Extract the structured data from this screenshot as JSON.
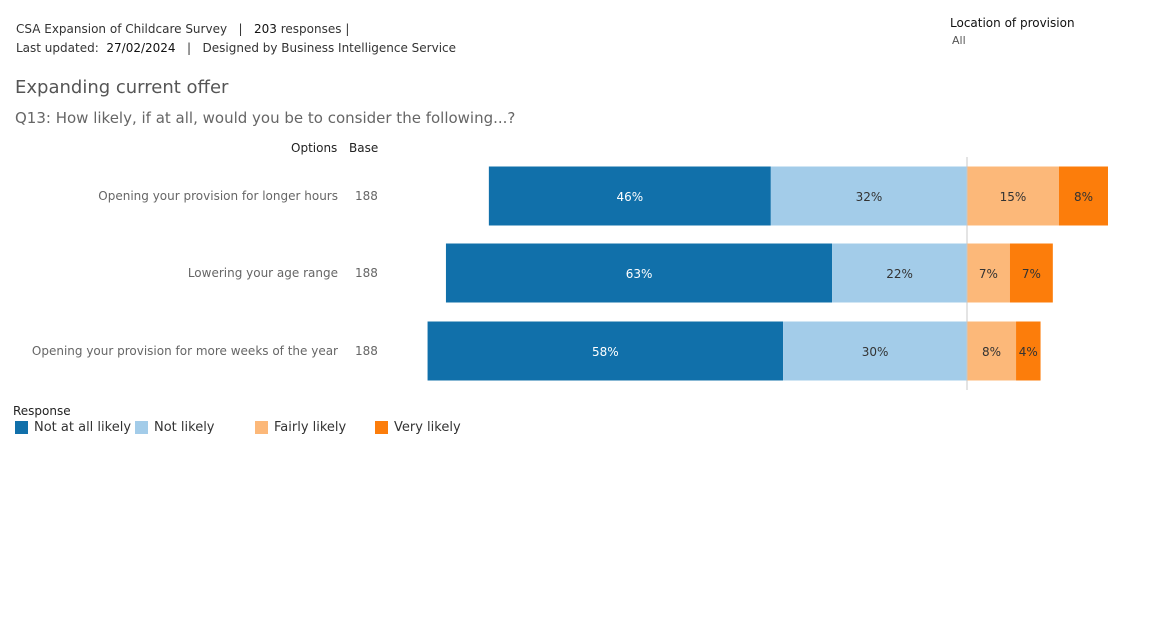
{
  "header": {
    "survey_name": "CSA Expansion of Childcare Survey",
    "separator": "|",
    "responses_count": "203",
    "responses_label": "responses |",
    "last_updated_label": "Last updated:",
    "last_updated_value": "27/02/2024",
    "designed_by": "Designed by Business Intelligence Service"
  },
  "filter": {
    "label": "Location of provision",
    "value": "All"
  },
  "title": "Expanding current offer",
  "question": "Q13: How likely, if at all, would you be to consider the following...?",
  "columns": {
    "options": "Options",
    "base": "Base"
  },
  "legend": {
    "title": "Response",
    "items": [
      "Not at all likely",
      "Not likely",
      "Fairly likely",
      "Very likely"
    ]
  },
  "colors": {
    "not_at_all_likely": "#1170aa",
    "not_likely": "#a3cce9",
    "fairly_likely": "#fcb879",
    "very_likely": "#fc7d0b"
  },
  "chart_data": {
    "type": "bar",
    "orientation": "horizontal-diverging",
    "categories": [
      "Opening your provision for longer hours",
      "Lowering your age range",
      "Opening your provision for more weeks of the year"
    ],
    "base": [
      "188",
      "188",
      "188"
    ],
    "series": [
      {
        "name": "Not at all likely",
        "values": [
          46,
          63,
          58
        ],
        "labels": [
          "46%",
          "63%",
          "58%"
        ],
        "side": "negative"
      },
      {
        "name": "Not likely",
        "values": [
          32,
          22,
          30
        ],
        "labels": [
          "32%",
          "22%",
          "30%"
        ],
        "side": "negative"
      },
      {
        "name": "Fairly likely",
        "values": [
          15,
          7,
          8
        ],
        "labels": [
          "15%",
          "7%",
          "8%"
        ],
        "side": "positive"
      },
      {
        "name": "Very likely",
        "values": [
          8,
          7,
          4
        ],
        "labels": [
          "8%",
          "7%",
          "4%"
        ],
        "side": "positive"
      }
    ],
    "unit": "%"
  }
}
